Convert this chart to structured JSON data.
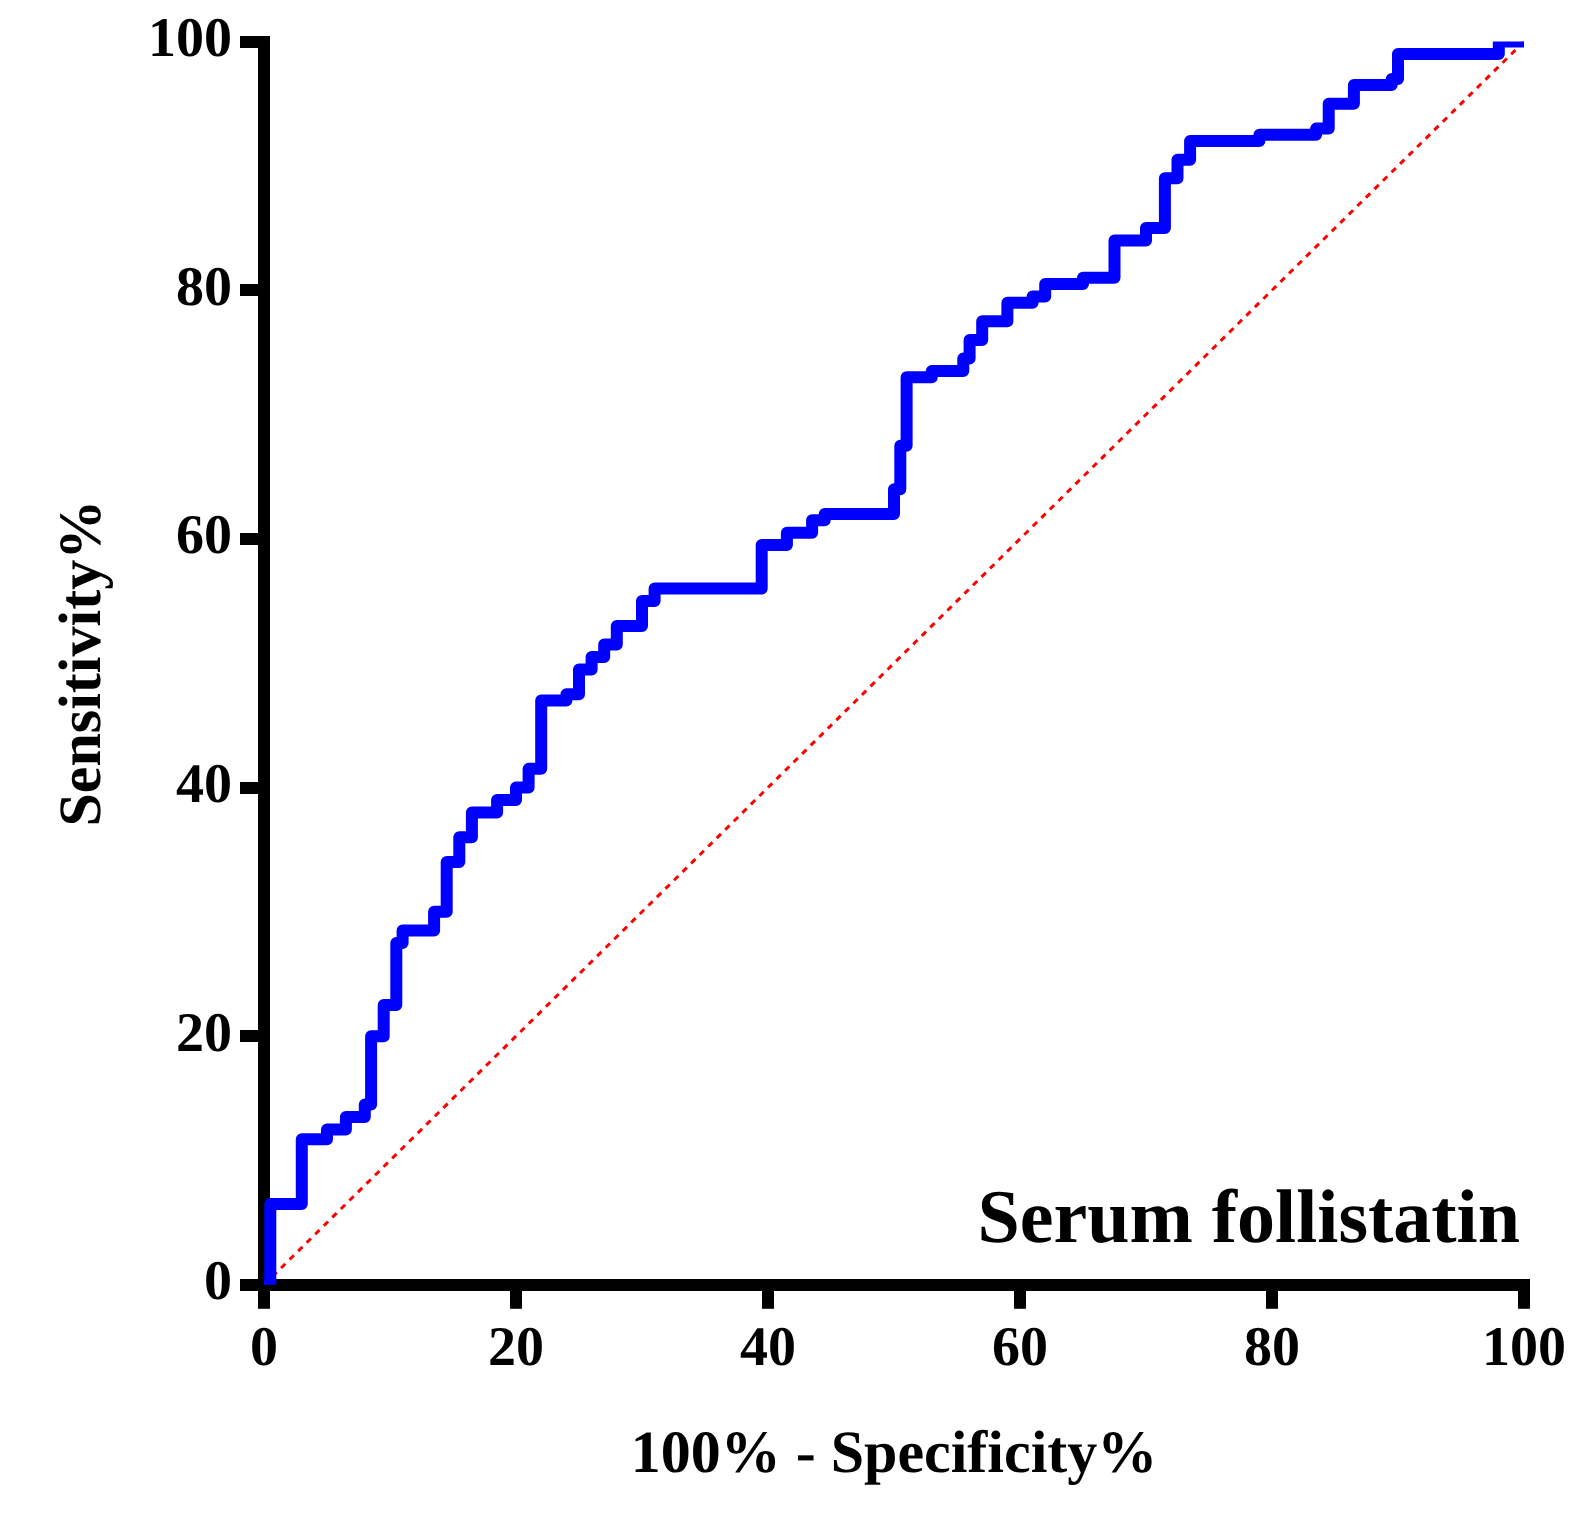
{
  "chart_data": {
    "type": "step",
    "xlabel": "100% - Specificity%",
    "ylabel": "Sensitivity%",
    "annotations": [
      "Serum follistatin"
    ],
    "xlim": [
      0,
      100
    ],
    "ylim": [
      0,
      100
    ],
    "xticks": [
      0,
      20,
      40,
      60,
      80,
      100
    ],
    "yticks": [
      0,
      20,
      40,
      60,
      80,
      100
    ],
    "grid": false,
    "legend": false,
    "marker": "none",
    "series": [
      {
        "color": "#0000ff",
        "line_style": "solid",
        "x": [
          0,
          0.5,
          3,
          5,
          6.5,
          8,
          8.5,
          9.5,
          10.5,
          11,
          13.5,
          14.5,
          15.5,
          16.5,
          18.5,
          20,
          21,
          22,
          24,
          25,
          26,
          27,
          28,
          30,
          31,
          39.5,
          41.5,
          43.5,
          44.5,
          49.5,
          50,
          50.5,
          51,
          53,
          55.5,
          56,
          57,
          59,
          61,
          62,
          65,
          67.5,
          70,
          71.5,
          72.5,
          73.5,
          78,
          79,
          83.5,
          84.5,
          86.5,
          89.5,
          90,
          97.5,
          98,
          100
        ],
        "values": [
          0,
          6.5,
          11.7,
          12.5,
          13.5,
          14.5,
          20,
          22.5,
          27.5,
          28.5,
          30,
          34,
          36,
          38,
          39,
          40,
          41.5,
          47,
          47.5,
          49.5,
          50.5,
          51.5,
          53,
          55,
          56,
          59.5,
          60.5,
          61.5,
          62,
          62,
          64,
          67.5,
          73,
          73.5,
          74.5,
          76,
          77.5,
          79,
          79.5,
          80.5,
          81,
          84,
          85,
          89,
          90.5,
          92,
          92,
          92.5,
          93,
          95,
          96.5,
          97,
          99,
          99,
          100,
          100
        ]
      },
      {
        "type": "line",
        "color": "#ff0000",
        "line_style": "dotted",
        "x": [
          0,
          100
        ],
        "values": [
          0,
          100
        ]
      }
    ]
  }
}
